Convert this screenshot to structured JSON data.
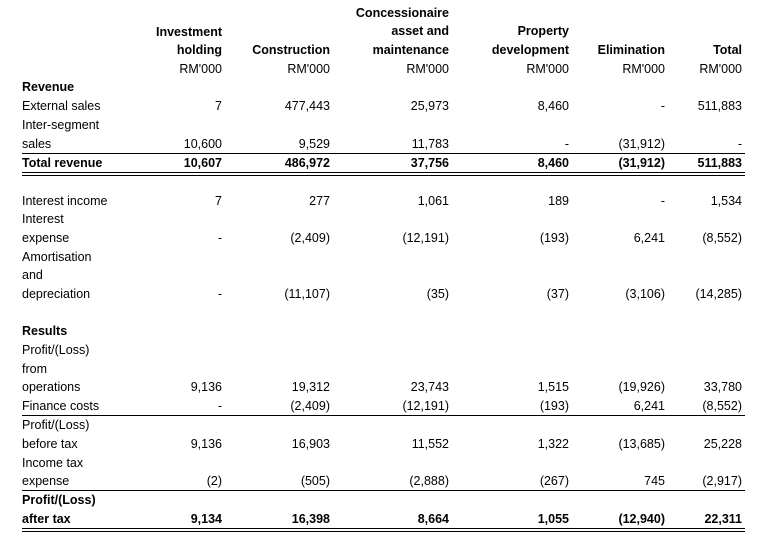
{
  "headers": {
    "investment_holding": [
      "Investment",
      "holding",
      "RM'000"
    ],
    "construction": [
      "Construction",
      "RM'000"
    ],
    "concessionaire": [
      "Concessionaire",
      "asset and",
      "maintenance",
      "RM'000"
    ],
    "property": [
      "Property",
      "development",
      "RM'000"
    ],
    "elimination": [
      "Elimination",
      "RM'000"
    ],
    "total": [
      "Total",
      "RM'000"
    ]
  },
  "sections": {
    "revenue": "Revenue",
    "results": "Results"
  },
  "rows": {
    "external_sales": {
      "label": [
        "External sales"
      ],
      "values": [
        "7",
        "477,443",
        "25,973",
        "8,460",
        "-",
        "511,883"
      ]
    },
    "inter_segment": {
      "label": [
        "Inter-segment",
        "sales"
      ],
      "values": [
        "10,600",
        "9,529",
        "11,783",
        "-",
        "(31,912)",
        "-"
      ]
    },
    "total_revenue": {
      "label": [
        "Total revenue"
      ],
      "values": [
        "10,607",
        "486,972",
        "37,756",
        "8,460",
        "(31,912)",
        "511,883"
      ]
    },
    "interest_income": {
      "label": [
        "Interest income"
      ],
      "values": [
        "7",
        "277",
        "1,061",
        "189",
        "-",
        "1,534"
      ]
    },
    "interest_expense": {
      "label": [
        "Interest",
        "expense"
      ],
      "values": [
        "-",
        "(2,409)",
        "(12,191)",
        "(193)",
        "6,241",
        "(8,552)"
      ]
    },
    "amortisation": {
      "label": [
        "Amortisation",
        "and",
        "depreciation"
      ],
      "values": [
        "-",
        "(11,107)",
        "(35)",
        "(37)",
        "(3,106)",
        "(14,285)"
      ]
    },
    "profit_operations": {
      "label": [
        "Profit/(Loss)",
        "from",
        "operations"
      ],
      "values": [
        "9,136",
        "19,312",
        "23,743",
        "1,515",
        "(19,926)",
        "33,780"
      ]
    },
    "finance_costs": {
      "label": [
        "Finance costs"
      ],
      "values": [
        "-",
        "(2,409)",
        "(12,191)",
        "(193)",
        "6,241",
        "(8,552)"
      ]
    },
    "profit_before_tax": {
      "label": [
        "Profit/(Loss)",
        "before tax"
      ],
      "values": [
        "9,136",
        "16,903",
        "11,552",
        "1,322",
        "(13,685)",
        "25,228"
      ]
    },
    "income_tax": {
      "label": [
        "Income tax",
        "expense"
      ],
      "values": [
        "(2)",
        "(505)",
        "(2,888)",
        "(267)",
        "745",
        "(2,917)"
      ]
    },
    "profit_after_tax": {
      "label": [
        "Profit/(Loss)",
        "after tax"
      ],
      "values": [
        "9,134",
        "16,398",
        "8,664",
        "1,055",
        "(12,940)",
        "22,311"
      ]
    }
  }
}
